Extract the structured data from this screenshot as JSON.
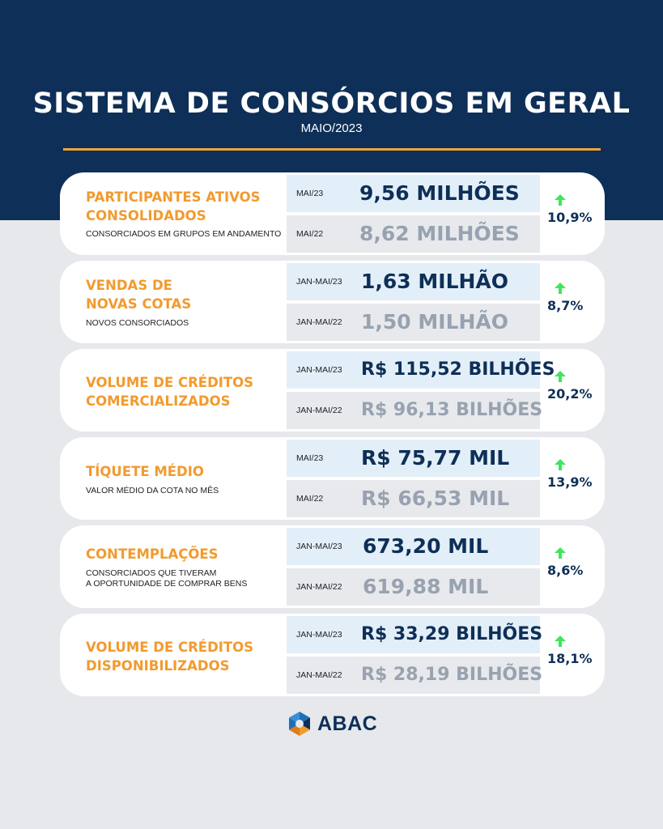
{
  "header": {
    "title": "SISTEMA DE CONSÓRCIOS EM GERAL",
    "subtitle": "MAIO/2023"
  },
  "cards": [
    {
      "title": "PARTICIPANTES ATIVOS\nCONSOLIDADOS",
      "description": "CONSORCIADOS EM GRUPOS EM ANDAMENTO",
      "current": {
        "period": "MAI/23",
        "value": "9,56 MILHÕES"
      },
      "previous": {
        "period": "MAI/22",
        "value": "8,62 MILHÕES"
      },
      "growth": "10,9%"
    },
    {
      "title": "VENDAS DE\nNOVAS COTAS",
      "description": "NOVOS CONSORCIADOS",
      "current": {
        "period": "JAN-MAI/23",
        "value": "1,63 MILHÃO"
      },
      "previous": {
        "period": "JAN-MAI/22",
        "value": "1,50 MILHÃO"
      },
      "growth": "8,7%"
    },
    {
      "title": "VOLUME DE CRÉDITOS\nCOMERCIALIZADOS",
      "description": "",
      "current": {
        "period": "JAN-MAI/23",
        "value": "R$ 115,52 BILHÕES"
      },
      "previous": {
        "period": "JAN-MAI/22",
        "value": "R$ 96,13 BILHÕES"
      },
      "growth": "20,2%"
    },
    {
      "title": "TÍQUETE MÉDIO",
      "description": "VALOR MÉDIO DA COTA NO MÊS",
      "current": {
        "period": "MAI/23",
        "value": "R$ 75,77 MIL"
      },
      "previous": {
        "period": "MAI/22",
        "value": "R$ 66,53 MIL"
      },
      "growth": "13,9%"
    },
    {
      "title": "CONTEMPLAÇÕES",
      "description": "CONSORCIADOS QUE TIVERAM\nA OPORTUNIDADE DE COMPRAR BENS",
      "current": {
        "period": "JAN-MAI/23",
        "value": "673,20 MIL"
      },
      "previous": {
        "period": "JAN-MAI/22",
        "value": "619,88 MIL"
      },
      "growth": "8,6%"
    },
    {
      "title": "VOLUME DE CRÉDITOS\nDISPONIBILIZADOS",
      "description": "",
      "current": {
        "period": "JAN-MAI/23",
        "value": "R$ 33,29 BILHÕES"
      },
      "previous": {
        "period": "JAN-MAI/22",
        "value": "R$ 28,19 BILHÕES"
      },
      "growth": "18,1%"
    }
  ],
  "footer": {
    "logo_text": "ABAC"
  },
  "colors": {
    "header_background": "#0e2f57",
    "accent_orange": "#f29a2e",
    "growth_arrow": "#3fe65a",
    "current_value": "#0e2f57",
    "previous_value": "#98a2b0"
  },
  "icons": {
    "growth": "up-arrow-icon",
    "logo": "abac-logo-icon"
  }
}
